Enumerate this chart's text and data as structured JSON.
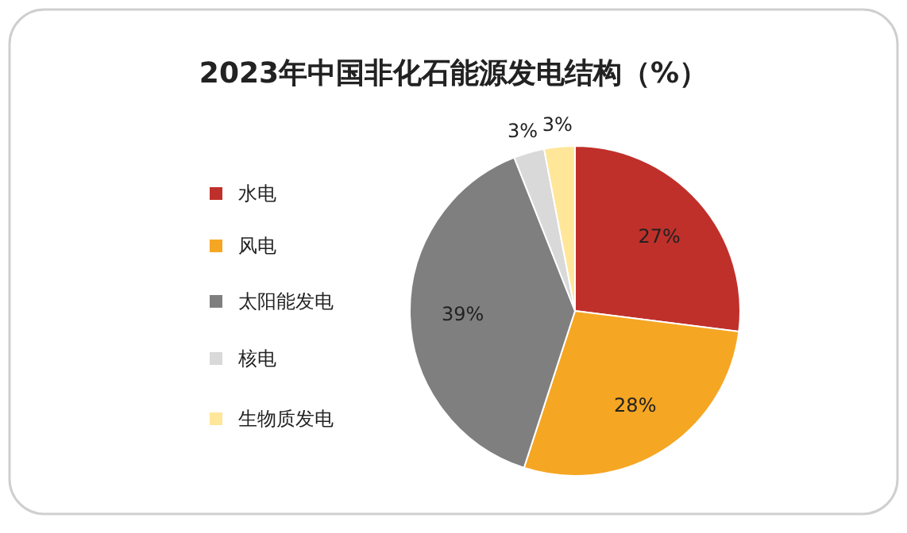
{
  "chart_data": {
    "type": "pie",
    "title": "2023年中国非化石能源发电结构（%）",
    "categories": [
      "水电",
      "风电",
      "太阳能发电",
      "核电",
      "生物质发电"
    ],
    "values": [
      27,
      28,
      39,
      3,
      3
    ],
    "colors": [
      "#c0302a",
      "#f5a623",
      "#7f7f7f",
      "#d9d9d9",
      "#ffe699"
    ],
    "value_labels": [
      "27%",
      "28%",
      "39%",
      "3%",
      "3%"
    ],
    "legend": "left"
  }
}
